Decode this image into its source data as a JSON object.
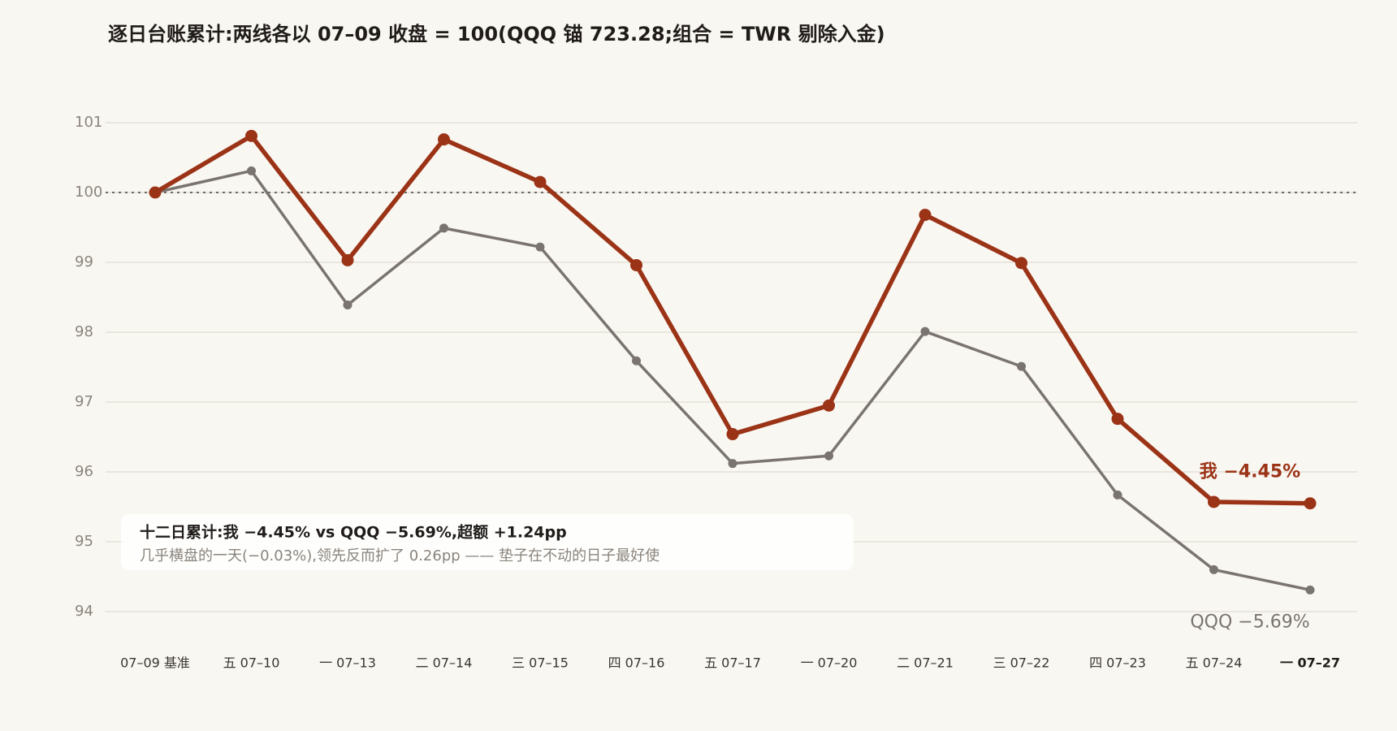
{
  "chart_data": {
    "type": "line",
    "title": "逐日台账累计:两线各以 07–09 收盘 = 100(QQQ 锚 723.28;组合 = TWR 剔除入金)",
    "categories": [
      "07–09 基准",
      "五 07–10",
      "一 07–13",
      "二 07–14",
      "三 07–15",
      "四 07–16",
      "五 07–17",
      "一 07–20",
      "二 07–21",
      "三 07–22",
      "四 07–23",
      "五 07–24",
      "一 07–27"
    ],
    "highlight_category": 12,
    "series": [
      {
        "name": "我 −4.45%",
        "color": "#9b3316",
        "values": [
          100,
          100.81,
          99.03,
          100.76,
          100.15,
          98.96,
          96.54,
          96.95,
          99.68,
          98.99,
          96.76,
          95.57,
          95.55
        ]
      },
      {
        "name": "QQQ −5.69%",
        "color": "#7a7470",
        "values": [
          100,
          100.31,
          98.39,
          99.49,
          99.22,
          97.59,
          96.12,
          96.23,
          98.01,
          97.51,
          95.67,
          94.6,
          94.31
        ]
      }
    ],
    "ylim": [
      94,
      101
    ],
    "yticks": [
      94,
      95,
      96,
      97,
      98,
      99,
      100,
      101
    ],
    "grid": true,
    "baseline": 100,
    "annotation": {
      "headline": "十二日累计:我 −4.45% vs QQQ −5.69%,超额 +1.24pp",
      "detail": "几乎横盘的一天(−0.03%),领先反而扩了 0.26pp —— 垫子在不动的日子最好使"
    }
  }
}
